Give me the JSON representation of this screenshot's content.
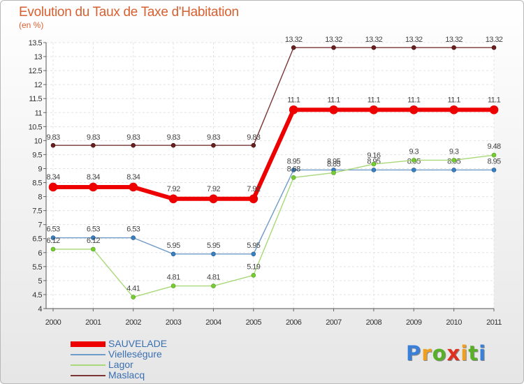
{
  "title": "Evolution du Taux de Taxe d'Habitation",
  "subtitle": "(en %)",
  "logo": {
    "text": "Proxiti",
    "colors": [
      "#3a7fd8",
      "#f0a020",
      "#58b028",
      "#e03020",
      "#f0a020",
      "#58b028",
      "#3a7fd8"
    ]
  },
  "chart_data": {
    "type": "line",
    "title": "Evolution du Taux de Taxe d'Habitation",
    "ylabel": "(en %)",
    "xlabel": "",
    "ylim": [
      4,
      13.5
    ],
    "yticks": [
      "4",
      "4.5",
      "5",
      "5.5",
      "6",
      "6.5",
      "7",
      "7.5",
      "8",
      "8.5",
      "9",
      "9.5",
      "10",
      "10.5",
      "11",
      "11.5",
      "12",
      "12.5",
      "13",
      "13.5"
    ],
    "ytick_values": [
      4,
      4.5,
      5,
      5.5,
      6,
      6.5,
      7,
      7.5,
      8,
      8.5,
      9,
      9.5,
      10,
      10.5,
      11,
      11.5,
      12,
      12.5,
      13,
      13.5
    ],
    "categories": [
      "2000",
      "2001",
      "2002",
      "2003",
      "2004",
      "2005",
      "2006",
      "2007",
      "2008",
      "2009",
      "2010",
      "2011"
    ],
    "legend_position": "bottom-left",
    "series": [
      {
        "name": "Maslacq",
        "color": "#7b3535",
        "values": [
          9.83,
          9.83,
          9.83,
          9.83,
          9.83,
          9.83,
          13.32,
          13.32,
          13.32,
          13.32,
          13.32,
          13.32
        ],
        "labels": [
          "9.83",
          "9.83",
          "9.83",
          "9.83",
          "9.83",
          "9.83",
          "13.32",
          "13.32",
          "13.32",
          "13.32",
          "13.32",
          "13.32"
        ]
      },
      {
        "name": "Vielleségure",
        "color": "#6f9bc8",
        "values": [
          6.53,
          6.53,
          6.53,
          5.95,
          5.95,
          5.95,
          8.95,
          8.95,
          8.95,
          8.95,
          8.95,
          8.95
        ],
        "labels": [
          "6.53",
          "6.53",
          "6.53",
          "5.95",
          "5.95",
          "5.95",
          "8.95",
          "8.95",
          "8.95",
          "8.95",
          "8.95",
          "8.95"
        ]
      },
      {
        "name": "Lagor",
        "color": "#a8d878",
        "values": [
          6.12,
          6.12,
          4.41,
          4.81,
          4.81,
          5.19,
          8.68,
          8.85,
          9.16,
          9.3,
          9.3,
          9.48
        ],
        "labels": [
          "6.12",
          "6.12",
          "4.41",
          "4.81",
          "4.81",
          "5.19",
          "8.68",
          "8.85",
          "9.16",
          "9.3",
          "9.3",
          "9.48"
        ]
      },
      {
        "name": "SAUVELADE",
        "color": "#ee0000",
        "values": [
          8.34,
          8.34,
          8.34,
          7.92,
          7.92,
          7.92,
          11.1,
          11.1,
          11.1,
          11.1,
          11.1,
          11.1
        ],
        "labels": [
          "8.34",
          "8.34",
          "8.34",
          "7.92",
          "7.92",
          "7.92",
          "11.1",
          "11.1",
          "11.1",
          "11.1",
          "11.1",
          "11.1"
        ]
      }
    ],
    "legend": [
      "SAUVELADE",
      "Vielleségure",
      "Lagor",
      "Maslacq"
    ]
  }
}
